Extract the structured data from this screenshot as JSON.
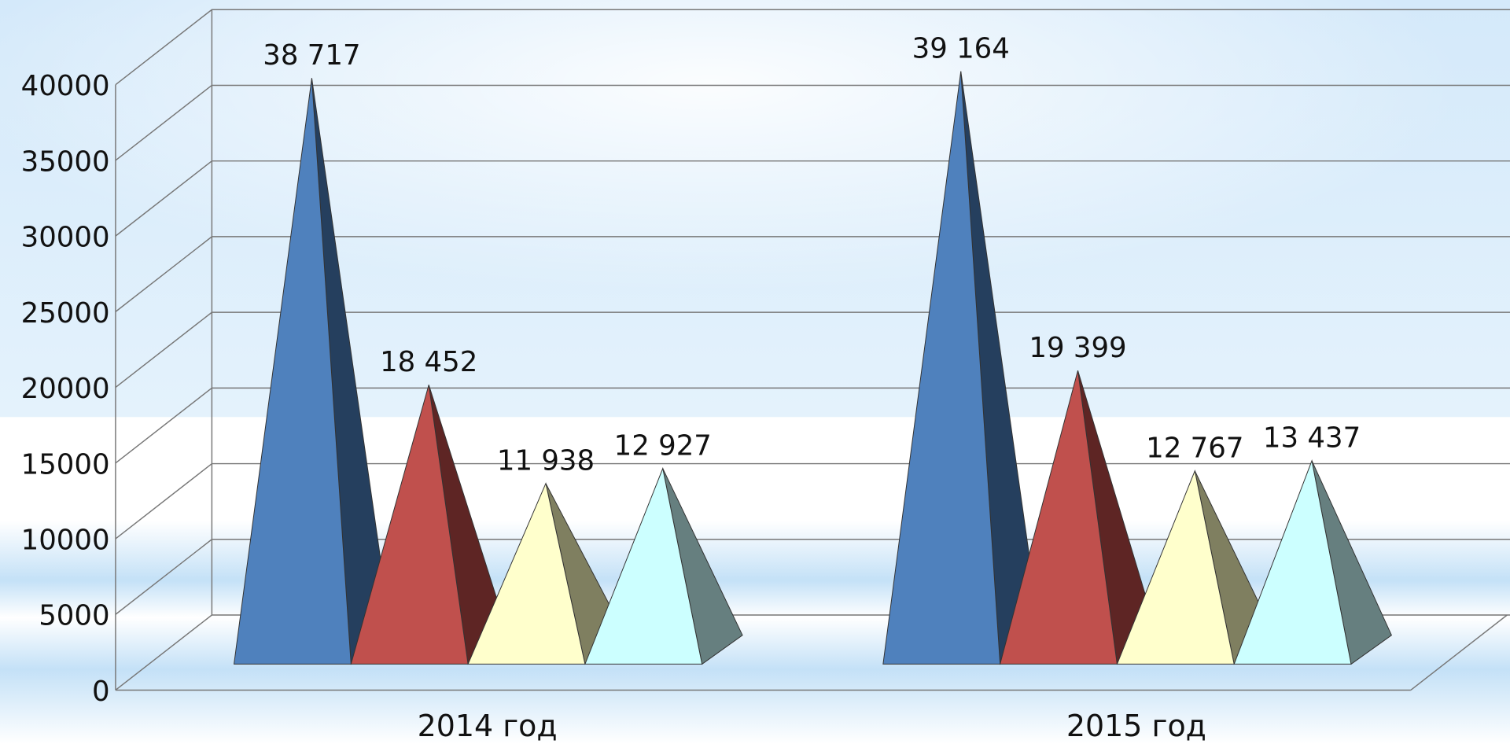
{
  "chart_data": {
    "type": "pyramid3d",
    "categories": [
      "2014 год",
      "2015 год"
    ],
    "series": [
      {
        "color": "#4f81bd",
        "values": [
          38717,
          39164
        ],
        "value_labels": [
          "38 717",
          "39 164"
        ]
      },
      {
        "color": "#c0504d",
        "values": [
          18452,
          19399
        ],
        "value_labels": [
          "18 452",
          "19 399"
        ]
      },
      {
        "color": "#ffffcc",
        "values": [
          11938,
          12767
        ],
        "value_labels": [
          "11 938",
          "12 767"
        ]
      },
      {
        "color": "#ccffff",
        "values": [
          12927,
          13437
        ],
        "value_labels": [
          "12 927",
          "13 437"
        ]
      }
    ],
    "ylim": [
      0,
      40000
    ],
    "yticks": [
      0,
      5000,
      10000,
      15000,
      20000,
      25000,
      30000,
      35000,
      40000
    ],
    "grid": true
  }
}
